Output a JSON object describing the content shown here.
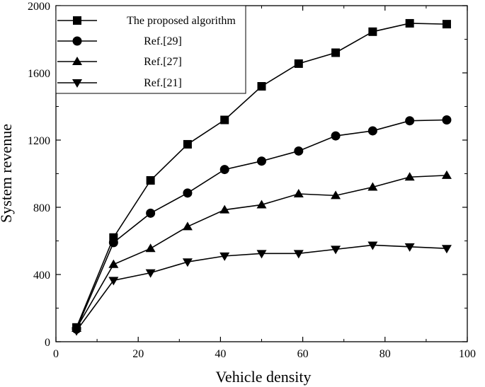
{
  "chart_data": {
    "type": "line",
    "xlabel": "Vehicle density",
    "ylabel": "System revenue",
    "xlim": [
      0,
      100
    ],
    "ylim": [
      0,
      2000
    ],
    "xticks": [
      "0",
      "20",
      "40",
      "60",
      "80",
      "100"
    ],
    "yticks": [
      "0",
      "400",
      "800",
      "1200",
      "1600",
      "2000"
    ],
    "grid": false,
    "legend": "top-left",
    "series": [
      {
        "name": "The proposed algorithm",
        "marker": "square",
        "x": [
          5,
          14,
          23,
          32,
          41,
          50,
          59,
          68,
          77,
          86,
          95
        ],
        "y": [
          85,
          620,
          960,
          1175,
          1320,
          1520,
          1655,
          1720,
          1845,
          1895,
          1890
        ]
      },
      {
        "name": "Ref.[29]",
        "marker": "circle",
        "x": [
          5,
          14,
          23,
          32,
          41,
          50,
          59,
          68,
          77,
          86,
          95
        ],
        "y": [
          75,
          590,
          765,
          885,
          1025,
          1075,
          1135,
          1225,
          1255,
          1315,
          1320
        ]
      },
      {
        "name": "Ref.[27]",
        "marker": "triangle-up",
        "x": [
          5,
          14,
          23,
          32,
          41,
          50,
          59,
          68,
          77,
          86,
          95
        ],
        "y": [
          80,
          460,
          555,
          685,
          785,
          815,
          880,
          870,
          920,
          980,
          990
        ]
      },
      {
        "name": "Ref.[21]",
        "marker": "triangle-down",
        "x": [
          5,
          14,
          23,
          32,
          41,
          50,
          59,
          68,
          77,
          86,
          95
        ],
        "y": [
          65,
          365,
          410,
          475,
          510,
          525,
          525,
          550,
          575,
          565,
          555
        ]
      }
    ]
  }
}
